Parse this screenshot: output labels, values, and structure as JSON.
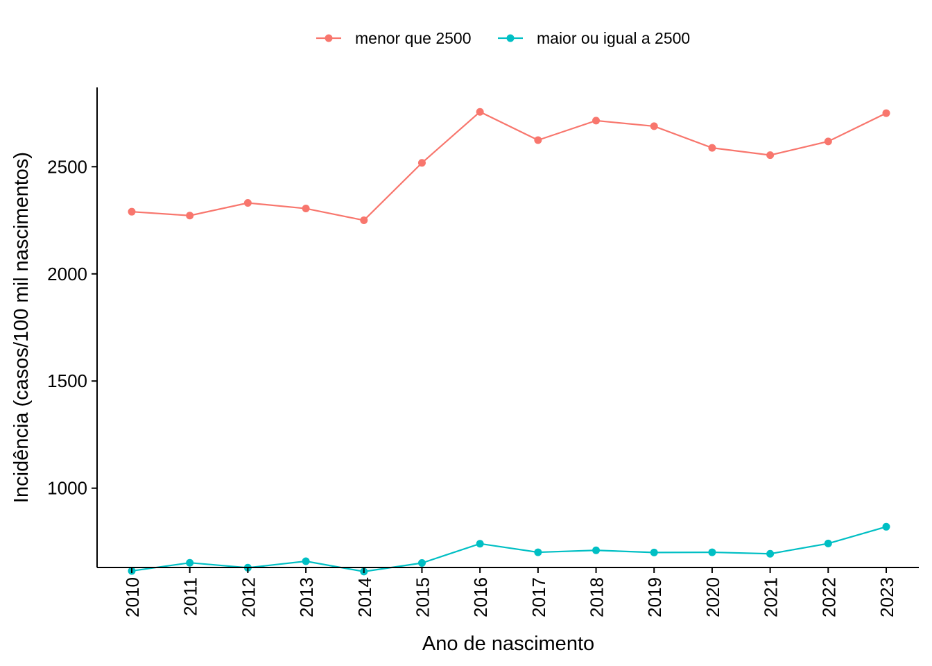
{
  "chart_data": {
    "type": "line",
    "xlabel": "Ano de nascimento",
    "ylabel": "Incidência (casos/100 mil nascimentos)",
    "x": [
      "2010",
      "2011",
      "2012",
      "2013",
      "2014",
      "2015",
      "2016",
      "2017",
      "2018",
      "2019",
      "2020",
      "2021",
      "2022",
      "2023"
    ],
    "y_ticks": [
      1000,
      1500,
      2000,
      2500
    ],
    "ylim": [
      630,
      2870
    ],
    "grid": false,
    "legend_position": "top",
    "series": [
      {
        "name": "menor que 2500",
        "color": "#F8766D",
        "values": [
          2290,
          2272,
          2331,
          2305,
          2250,
          2518,
          2756,
          2624,
          2715,
          2689,
          2588,
          2554,
          2618,
          2750
        ]
      },
      {
        "name": "maior ou igual a 2500",
        "color": "#00BFC4",
        "values": [
          614,
          652,
          629,
          659,
          611,
          651,
          741,
          701,
          710,
          700,
          701,
          694,
          742,
          820
        ]
      }
    ]
  }
}
